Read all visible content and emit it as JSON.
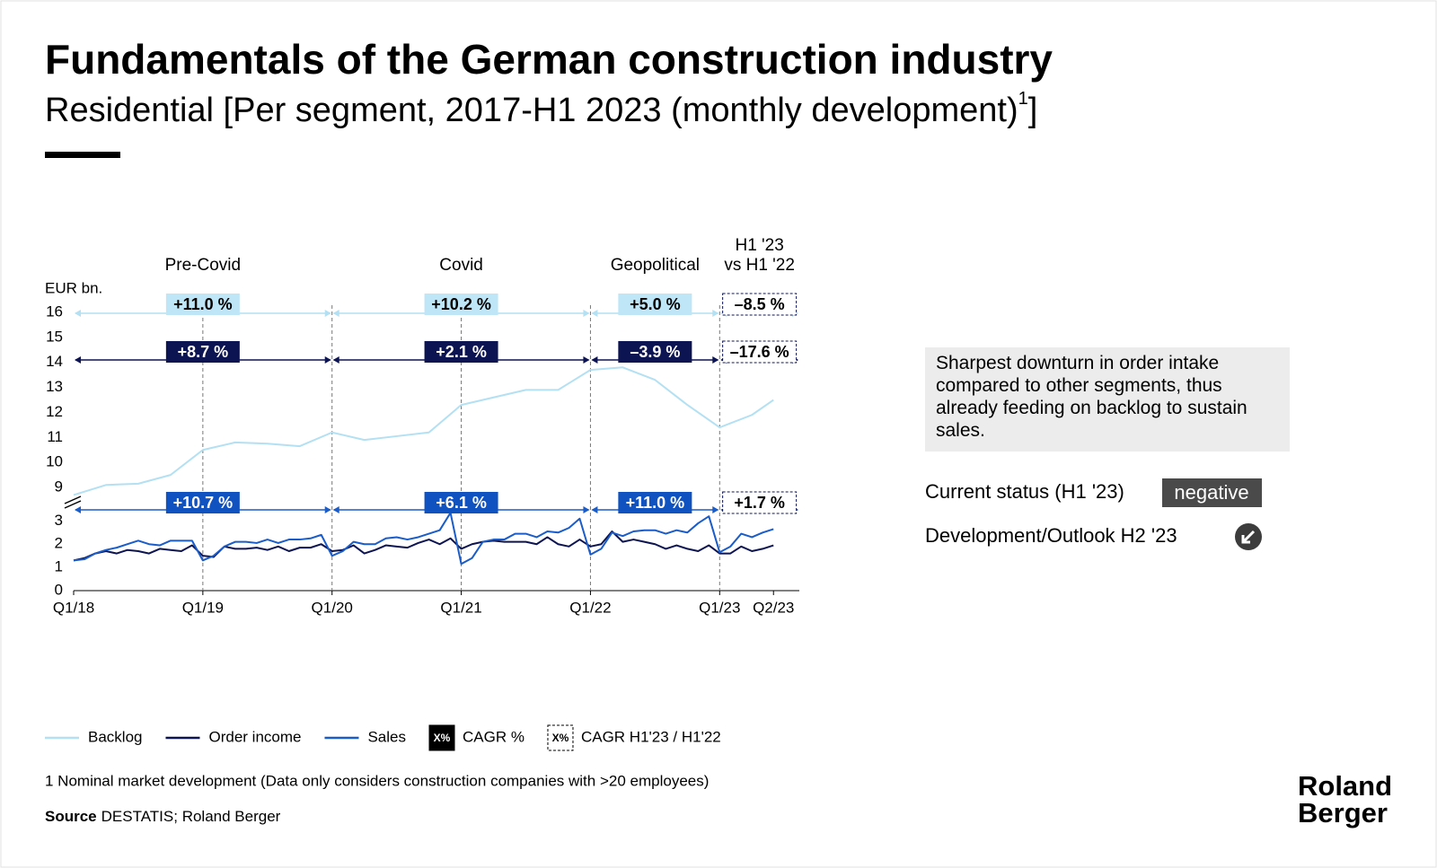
{
  "title": "Fundamentals of the German construction industry",
  "subtitle": "Residential [Per segment, 2017-H1 2023 (monthly development)",
  "subtitle_note": "1",
  "subtitle_end": "]",
  "chart_data": {
    "type": "line",
    "unit": "EUR bn.",
    "x": [
      0,
      1,
      2,
      3,
      4,
      5,
      6,
      7,
      8,
      9,
      10,
      11,
      12,
      13,
      14,
      15,
      16,
      17,
      18,
      19,
      20,
      21,
      22,
      23,
      24,
      25,
      26,
      27,
      28,
      29,
      30,
      31,
      32,
      33,
      34,
      35,
      36,
      37,
      38,
      39,
      40,
      41,
      42,
      43,
      44,
      45,
      46,
      47,
      48,
      49,
      50,
      51,
      52,
      53,
      54,
      55,
      56,
      57,
      58,
      59,
      60,
      61,
      62,
      63,
      64,
      65
    ],
    "xlim": [
      0,
      67.4
    ],
    "xticks": [
      {
        "value": 0,
        "label": "Q1/18"
      },
      {
        "value": 12,
        "label": "Q1/19"
      },
      {
        "value": 24,
        "label": "Q1/20"
      },
      {
        "value": 36,
        "label": "Q1/21"
      },
      {
        "value": 48,
        "label": "Q1/22"
      },
      {
        "value": 60,
        "label": "Q1/23"
      },
      {
        "value": 65,
        "label": "Q2/23"
      }
    ],
    "ylim": [
      8.5,
      16
    ],
    "yticks": [
      9,
      10,
      11,
      12,
      13,
      14,
      15,
      16
    ],
    "ylim_lower": [
      0,
      3.4
    ],
    "yticks_lower": [
      0,
      1,
      2,
      3
    ],
    "series": [
      {
        "name": "Backlog",
        "color": "#b3e0f2",
        "panel": "upper",
        "x": [
          0,
          3,
          6,
          9,
          12,
          15,
          18,
          21,
          24,
          27,
          30,
          33,
          36,
          39,
          42,
          45,
          48,
          51,
          54,
          57,
          60,
          63,
          65
        ],
        "values": [
          8.7,
          9.1,
          9.15,
          9.5,
          10.5,
          10.8,
          10.75,
          10.65,
          11.2,
          10.9,
          11.05,
          11.2,
          12.3,
          12.6,
          12.9,
          12.9,
          13.7,
          13.8,
          13.3,
          12.3,
          11.4,
          11.9,
          12.5
        ]
      },
      {
        "name": "Order income",
        "color": "#0d1452",
        "panel": "lower",
        "values": [
          1.3,
          1.4,
          1.6,
          1.7,
          1.6,
          1.75,
          1.7,
          1.6,
          1.8,
          1.75,
          1.7,
          1.95,
          1.5,
          1.45,
          1.9,
          1.8,
          1.8,
          1.85,
          1.75,
          1.9,
          1.7,
          1.85,
          1.85,
          2.0,
          1.7,
          1.75,
          1.95,
          1.6,
          1.75,
          1.95,
          1.9,
          1.85,
          2.05,
          2.2,
          2.0,
          2.25,
          1.8,
          2.0,
          2.1,
          2.15,
          2.1,
          2.1,
          2.1,
          2.0,
          2.3,
          2.0,
          1.9,
          2.2,
          1.9,
          2.0,
          2.55,
          2.1,
          2.2,
          2.1,
          2.0,
          1.8,
          1.95,
          1.8,
          1.7,
          1.95,
          1.6,
          1.6,
          1.9,
          1.7,
          1.8,
          1.95
        ]
      },
      {
        "name": "Sales",
        "color": "#1a5cc8",
        "panel": "lower",
        "values": [
          1.3,
          1.35,
          1.6,
          1.75,
          1.85,
          2.0,
          2.15,
          2.0,
          1.95,
          2.15,
          2.15,
          2.15,
          1.3,
          1.5,
          1.9,
          2.1,
          2.1,
          2.05,
          2.2,
          2.05,
          2.2,
          2.2,
          2.25,
          2.4,
          1.5,
          1.7,
          2.1,
          2.0,
          2.0,
          2.25,
          2.3,
          2.2,
          2.3,
          2.45,
          2.6,
          3.35,
          1.15,
          1.4,
          2.1,
          2.2,
          2.2,
          2.45,
          2.45,
          2.3,
          2.55,
          2.5,
          2.7,
          3.1,
          1.55,
          1.8,
          2.5,
          2.35,
          2.55,
          2.6,
          2.6,
          2.45,
          2.6,
          2.5,
          2.9,
          3.2,
          1.65,
          1.9,
          2.45,
          2.3,
          2.5,
          2.65
        ]
      }
    ],
    "periods": [
      {
        "label": [
          "Pre-Covid"
        ],
        "style": "solid",
        "cagr": [
          {
            "value": 11.0,
            "label": "+11.0 %"
          },
          {
            "value": 8.7,
            "label": "+8.7 %"
          },
          {
            "value": 10.7,
            "label": "+10.7 %"
          }
        ]
      },
      {
        "label": [
          "Covid"
        ],
        "style": "solid",
        "cagr": [
          {
            "value": 10.2,
            "label": "+10.2 %"
          },
          {
            "value": 2.1,
            "label": "+2.1 %"
          },
          {
            "value": 6.1,
            "label": "+6.1 %"
          }
        ]
      },
      {
        "label": [
          "Geopolitical"
        ],
        "style": "solid",
        "cagr": [
          {
            "value": 5.0,
            "label": "+5.0 %"
          },
          {
            "value": -3.9,
            "label": "–3.9 %"
          },
          {
            "value": 11.0,
            "label": "+11.0 %"
          }
        ]
      },
      {
        "label": [
          "H1 '23",
          "vs H1 '22"
        ],
        "style": "dashed",
        "cagr": [
          {
            "value": -8.5,
            "label": "–8.5 %"
          },
          {
            "value": -17.6,
            "label": "–17.6 %"
          },
          {
            "value": 1.7,
            "label": "+1.7 %"
          }
        ]
      }
    ],
    "legend_boxes": [
      {
        "symbol": "X%",
        "label": "CAGR %",
        "style": "solid"
      },
      {
        "symbol": "X%",
        "label": "CAGR H1'23 / H1'22",
        "style": "dashed"
      }
    ]
  },
  "commentary": "Sharpest downturn in order intake compared to other segments, thus already feeding on backlog to sustain sales.",
  "status": {
    "label": "Current status (H1 '23)",
    "value": "negative"
  },
  "outlook": {
    "label": "Development/Outlook H2 '23"
  },
  "footnote": "1 Nominal market development (Data only considers construction companies with >20 employees)",
  "source": {
    "label": "Source",
    "text": "DESTATIS; Roland Berger"
  },
  "logo": [
    "Roland",
    "Berger"
  ]
}
